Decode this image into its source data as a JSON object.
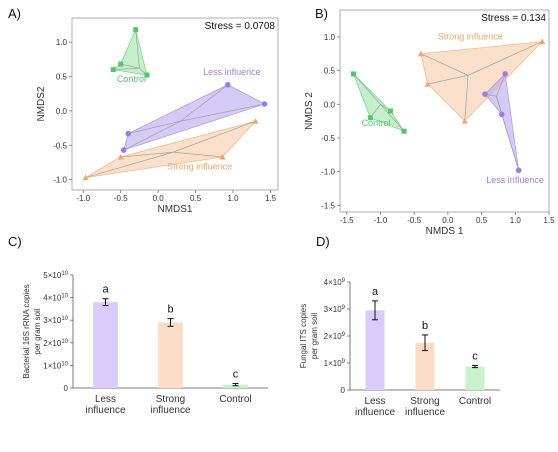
{
  "colors": {
    "less": "#9b7fe0",
    "strong": "#f0a56a",
    "control": "#55c46a",
    "less_fill": "#b9a6f0",
    "strong_fill": "#f7c9a6",
    "control_fill": "#9fe3a8",
    "less_bar": "#d9ccfa",
    "strong_bar": "#fbdcc6",
    "control_bar": "#c8f2cc"
  },
  "chart_data": [
    {
      "panel": "A)",
      "type": "scatter",
      "stress": "Stress = 0.0708",
      "xlabel": "NMDS1",
      "ylabel": "NMDS2",
      "xlim": [
        -1.15,
        1.6
      ],
      "ylim": [
        -1.15,
        1.35
      ],
      "xticks": [
        "-1.0",
        "-0.5",
        "0.0",
        "0.5",
        "1.0",
        "1.5"
      ],
      "yticks": [
        "-1.0",
        "-0.5",
        "0.0",
        "0.5",
        "1.0"
      ],
      "groups": [
        {
          "name": "Control",
          "key": "control",
          "points": [
            [
              -0.5,
              0.68
            ],
            [
              -0.15,
              0.52
            ],
            [
              -0.3,
              1.18
            ],
            [
              -0.6,
              0.6
            ]
          ],
          "centroid": [
            -0.25,
            0.62
          ]
        },
        {
          "name": "Less influence",
          "key": "less",
          "points": [
            [
              1.42,
              0.1
            ],
            [
              0.93,
              0.38
            ],
            [
              -0.4,
              -0.33
            ],
            [
              -0.46,
              -0.57
            ]
          ],
          "centroid": [
            0.3,
            -0.15
          ]
        },
        {
          "name": "Strong influence",
          "key": "strong",
          "points": [
            [
              1.3,
              -0.15
            ],
            [
              -0.97,
              -0.97
            ],
            [
              0.86,
              -0.67
            ],
            [
              -0.5,
              -0.67
            ]
          ],
          "centroid": [
            0.2,
            -0.6
          ]
        }
      ]
    },
    {
      "panel": "B)",
      "type": "scatter",
      "stress": "Stress = 0.134",
      "xlabel": "NMDS 1",
      "ylabel": "NMDS 2",
      "xlim": [
        -1.6,
        1.5
      ],
      "ylim": [
        -1.6,
        1.4
      ],
      "xticks": [
        "-1.5",
        "-1.0",
        "-0.5",
        "0.0",
        "0.5",
        "1.0",
        "1.5"
      ],
      "yticks": [
        "-1.5",
        "-1.0",
        "-0.5",
        "0.0",
        "0.5",
        "1.0"
      ],
      "groups": [
        {
          "name": "Control",
          "key": "control",
          "points": [
            [
              -1.4,
              0.45
            ],
            [
              -0.65,
              -0.4
            ],
            [
              -0.85,
              -0.1
            ],
            [
              -1.15,
              -0.2
            ]
          ],
          "centroid": [
            -1.0,
            0.0
          ]
        },
        {
          "name": "Strong influence",
          "key": "strong",
          "points": [
            [
              -0.4,
              0.75
            ],
            [
              1.4,
              0.93
            ],
            [
              0.25,
              -0.25
            ],
            [
              -0.3,
              0.3
            ]
          ],
          "centroid": [
            0.3,
            0.43
          ]
        },
        {
          "name": "Less influence",
          "key": "less",
          "points": [
            [
              0.85,
              0.45
            ],
            [
              0.55,
              0.15
            ],
            [
              0.8,
              -0.15
            ],
            [
              1.05,
              -0.98
            ]
          ],
          "centroid": [
            0.72,
            0.12
          ]
        }
      ]
    },
    {
      "panel": "C)",
      "type": "bar",
      "ylabel": "Bacterial 16S rRNA copies per gram soil",
      "ylabel_lines": [
        "Bacterial 16S rRNA  copies",
        "per gram soil"
      ],
      "ylim": [
        0,
        50000000000.0
      ],
      "yticks": [
        {
          "m": "0",
          "e": ""
        },
        {
          "m": "1×10",
          "e": "10"
        },
        {
          "m": "2×10",
          "e": "10"
        },
        {
          "m": "3×10",
          "e": "10"
        },
        {
          "m": "4×10",
          "e": "10"
        },
        {
          "m": "5×10",
          "e": "10"
        }
      ],
      "categories": [
        [
          "Less",
          "influence"
        ],
        [
          "Strong",
          "influence"
        ],
        [
          "Control"
        ]
      ],
      "values": [
        38000000000.0,
        29000000000.0,
        1500000000.0
      ],
      "errors": [
        1500000000.0,
        1700000000.0,
        500000000.0
      ],
      "letters": [
        "a",
        "b",
        "c"
      ],
      "keys": [
        "less",
        "strong",
        "control"
      ]
    },
    {
      "panel": "D)",
      "type": "bar",
      "ylabel": "Fungal ITS copies per gram soil",
      "ylabel_lines": [
        "Fungal  ITS  copies",
        "per gram soil"
      ],
      "ylim": [
        0,
        4000000000.0
      ],
      "yticks": [
        {
          "m": "0",
          "e": ""
        },
        {
          "m": "1×10",
          "e": "9"
        },
        {
          "m": "2×10",
          "e": "9"
        },
        {
          "m": "3×10",
          "e": "9"
        },
        {
          "m": "4×10",
          "e": "9"
        }
      ],
      "categories": [
        [
          "Less",
          "influence"
        ],
        [
          "Strong",
          "influence"
        ],
        [
          "Control"
        ]
      ],
      "values": [
        2950000000.0,
        1750000000.0,
        870000000.0
      ],
      "errors": [
        350000000.0,
        290000000.0,
        40000000.0
      ],
      "letters": [
        "a",
        "b",
        "c"
      ],
      "keys": [
        "less",
        "strong",
        "control"
      ]
    }
  ]
}
